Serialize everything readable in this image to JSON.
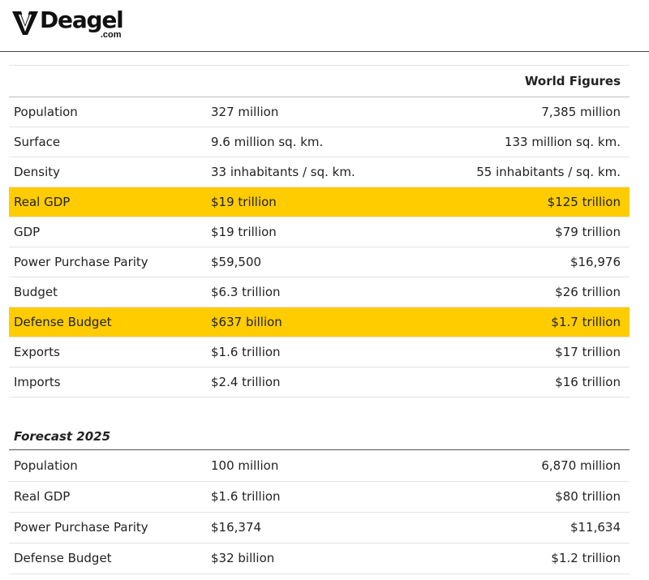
{
  "site": {
    "logo_word": "Deagel",
    "logo_suffix": ".com"
  },
  "table": {
    "world_header": "World Figures",
    "rows": [
      {
        "label": "Population",
        "value": "327 million",
        "world": "7,385 million",
        "highlight": false
      },
      {
        "label": "Surface",
        "value": "9.6 million sq. km.",
        "world": "133 million sq. km.",
        "highlight": false
      },
      {
        "label": "Density",
        "value": "33 inhabitants / sq. km.",
        "world": "55 inhabitants / sq. km.",
        "highlight": false
      },
      {
        "label": "Real GDP",
        "value": "$19 trillion",
        "world": "$125 trillion",
        "highlight": true
      },
      {
        "label": "GDP",
        "value": "$19 trillion",
        "world": "$79 trillion",
        "highlight": false
      },
      {
        "label": "Power Purchase Parity",
        "value": "$59,500",
        "world": "$16,976",
        "highlight": false
      },
      {
        "label": "Budget",
        "value": "$6.3 trillion",
        "world": "$26 trillion",
        "highlight": false
      },
      {
        "label": "Defense Budget",
        "value": "$637 billion",
        "world": "$1.7 trillion",
        "highlight": true
      },
      {
        "label": "Exports",
        "value": "$1.6 trillion",
        "world": "$17 trillion",
        "highlight": false
      },
      {
        "label": "Imports",
        "value": "$2.4 trillion",
        "world": "$16 trillion",
        "highlight": false
      }
    ]
  },
  "forecast": {
    "title": "Forecast 2025",
    "rows": [
      {
        "label": "Population",
        "value": "100 million",
        "world": "6,870 million"
      },
      {
        "label": "Real GDP",
        "value": "$1.6 trillion",
        "world": "$80 trillion"
      },
      {
        "label": "Power Purchase Parity",
        "value": "$16,374",
        "world": "$11,634"
      },
      {
        "label": "Defense Budget",
        "value": "$32 billion",
        "world": "$1.2 trillion"
      }
    ]
  },
  "colors": {
    "highlight": "#ffcc00",
    "text": "#222222"
  }
}
